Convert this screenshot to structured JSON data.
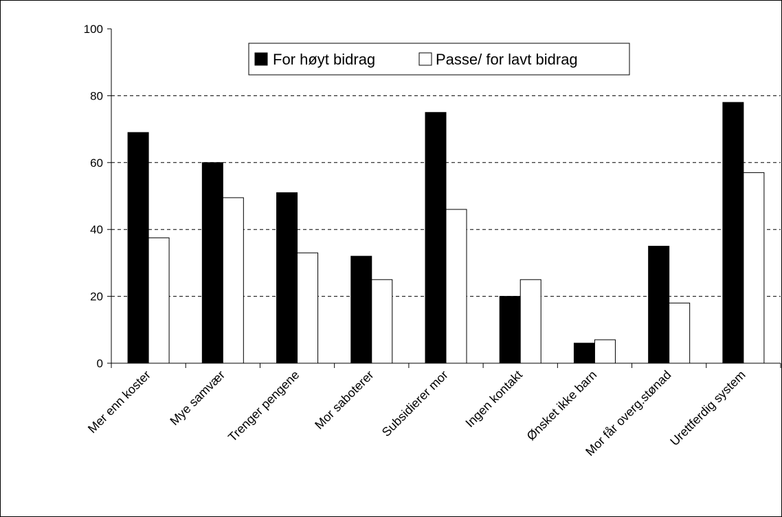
{
  "chart_data": {
    "type": "bar",
    "categories": [
      "Mer enn koster",
      "Mye samvær",
      "Trenger pengene",
      "Mor saboterer",
      "Subsidierer mor",
      "Ingen kontakt",
      "Ønsket ikke barn",
      "Mor får overg.stønad",
      "Urettferdig system"
    ],
    "series": [
      {
        "name": "For høyt bidrag",
        "values": [
          69,
          60,
          51,
          32,
          75,
          20,
          6,
          35,
          78
        ],
        "color": "#000000"
      },
      {
        "name": "Passe/ for lavt bidrag",
        "values": [
          37.5,
          49.5,
          33,
          25,
          46,
          25,
          7,
          18,
          57
        ],
        "color": "#ffffff"
      }
    ],
    "ylim": [
      0,
      100
    ],
    "yticks": [
      0,
      20,
      40,
      60,
      80,
      100
    ],
    "grid": true,
    "legend_position": "top-center",
    "title": "",
    "xlabel": "",
    "ylabel": ""
  }
}
